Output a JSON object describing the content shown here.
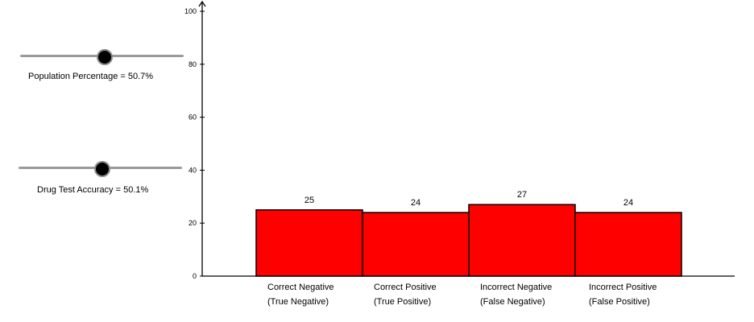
{
  "sliders": [
    {
      "label": "Population Percentage = 50.7%",
      "value": 50.7
    },
    {
      "label": "Drug Test Accuracy = 50.1%",
      "value": 50.1
    }
  ],
  "colors": {
    "bar": "#ff0000",
    "slider_track": "#9a9a9a",
    "knob": "#000000"
  },
  "chart_data": {
    "type": "bar",
    "categories": [
      [
        "Correct Negative",
        "(True Negative)"
      ],
      [
        "Correct Positive",
        "(True Positive)"
      ],
      [
        "Incorrect Negative",
        "(False Negative)"
      ],
      [
        "Incorrect Positive",
        "(False Positive)"
      ]
    ],
    "values": [
      25,
      24,
      27,
      24
    ],
    "data_labels": [
      "25",
      "24",
      "27",
      "24"
    ],
    "ylim": [
      0,
      100
    ],
    "yticks": [
      0,
      20,
      40,
      60,
      80,
      100
    ],
    "grid": false
  }
}
